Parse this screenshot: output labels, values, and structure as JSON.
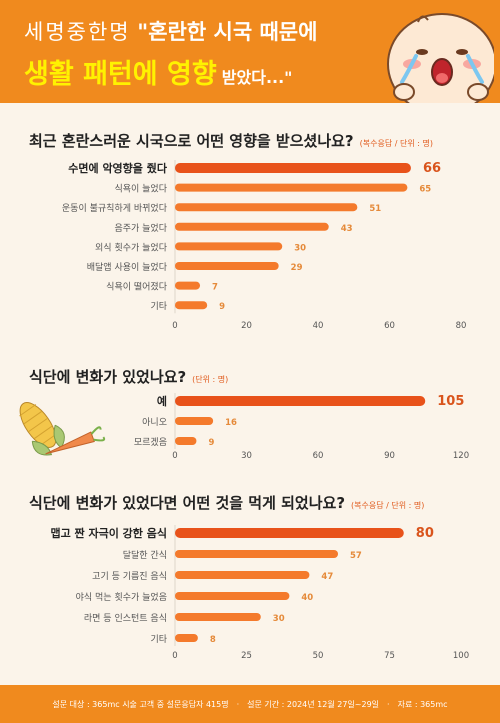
{
  "header": {
    "line1_light": "세명중한명",
    "line1_bold": "\"혼란한 시국 때문에",
    "line2_yellow": "생활 패턴에 영향",
    "line2_small": "받았다...\""
  },
  "sections": [
    {
      "title": "최근 혼란스러운 시국으로 어떤 영향을 받으셨나요?",
      "unit": "(복수응답 / 단위 : 명)"
    },
    {
      "title": "식단에 변화가 있었나요?",
      "unit": "(단위 : 명)"
    },
    {
      "title": "식단에 변화가 있었다면 어떤 것을 먹게 되었나요?",
      "unit": "(복수응답 / 단위 : 명)"
    }
  ],
  "chart_data": [
    {
      "type": "bar",
      "orientation": "horizontal",
      "categories": [
        "수면에 악영향을 줬다",
        "식욕이 늘었다",
        "운동이 불규칙하게 바뀌었다",
        "음주가 늘었다",
        "외식 횟수가 늘었다",
        "배달앱 사용이 늘었다",
        "식욕이 떨어졌다",
        "기타"
      ],
      "values": [
        66,
        65,
        51,
        43,
        30,
        29,
        7,
        9
      ],
      "xlim": [
        0,
        80
      ],
      "ticks": [
        0,
        20,
        40,
        60,
        80
      ],
      "highlight_first": true
    },
    {
      "type": "bar",
      "orientation": "horizontal",
      "categories": [
        "예",
        "아니오",
        "모르겠음"
      ],
      "values": [
        105,
        16,
        9
      ],
      "xlim": [
        0,
        120
      ],
      "ticks": [
        0,
        30,
        60,
        90,
        120
      ],
      "highlight_first": true
    },
    {
      "type": "bar",
      "orientation": "horizontal",
      "categories": [
        "맵고 짠 자극이 강한 음식",
        "달달한 간식",
        "고기 등 기름진 음식",
        "야식 먹는 횟수가 늘었음",
        "라면 등 인스턴트 음식",
        "기타"
      ],
      "values": [
        80,
        57,
        47,
        40,
        30,
        8
      ],
      "xlim": [
        0,
        100
      ],
      "ticks": [
        0,
        25,
        50,
        75,
        100
      ],
      "highlight_first": true
    }
  ],
  "footer": {
    "survey": "설문 대상 : 365mc 시술 고객 중 설문응답자 415명",
    "period": "설문 기간 : 2024년 12월 27일~29일",
    "source": "자료 : 365mc"
  },
  "colors": {
    "header_bg": "#f08a1e",
    "bar_main": "#e8521a",
    "bar_light": "#f47a2c",
    "value_highlight": "#d9541c",
    "value_normal": "#e58a3a",
    "page_bg": "#fbf4ea"
  }
}
